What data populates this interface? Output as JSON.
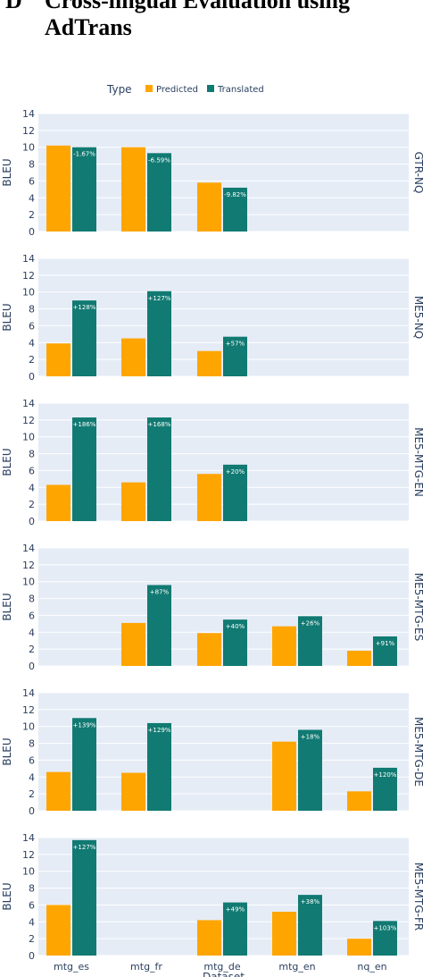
{
  "heading": {
    "letter": "D",
    "line1": "Cross-lingual Evaluation using",
    "line2": "AdTrans"
  },
  "legend": {
    "title": "Type",
    "items": [
      "Predicted",
      "Translated"
    ]
  },
  "colors": {
    "predicted": "#FFA500",
    "translated": "#117A72",
    "panel_bg": "#E5ECF6"
  },
  "chart_data": {
    "type": "bar",
    "categories": [
      "mtg_es",
      "mtg_fr",
      "mtg_de",
      "mtg_en",
      "nq_en"
    ],
    "xlabel": "Dataset",
    "ylabel": "BLEU",
    "ylim": [
      0,
      14
    ],
    "yticks": [
      0,
      2,
      4,
      6,
      8,
      10,
      12,
      14
    ],
    "legend_placement": "top-center",
    "grid": true,
    "facets": [
      {
        "name": "GTR-NQ",
        "series": [
          {
            "name": "Predicted",
            "values": [
              10.2,
              10.0,
              5.8,
              null,
              null
            ]
          },
          {
            "name": "Translated",
            "values": [
              10.0,
              9.3,
              5.2,
              null,
              null
            ]
          }
        ],
        "labels": [
          "-1.67%",
          "-6.59%",
          "-9.82%",
          null,
          null
        ]
      },
      {
        "name": "ME5-NQ",
        "series": [
          {
            "name": "Predicted",
            "values": [
              3.9,
              4.5,
              3.0,
              null,
              null
            ]
          },
          {
            "name": "Translated",
            "values": [
              9.0,
              10.1,
              4.7,
              null,
              null
            ]
          }
        ],
        "labels": [
          "+128%",
          "+127%",
          "+57%",
          null,
          null
        ]
      },
      {
        "name": "ME5-MTG-EN",
        "series": [
          {
            "name": "Predicted",
            "values": [
              4.3,
              4.6,
              5.6,
              null,
              null
            ]
          },
          {
            "name": "Translated",
            "values": [
              12.3,
              12.3,
              6.7,
              null,
              null
            ]
          }
        ],
        "labels": [
          "+186%",
          "+168%",
          "+20%",
          null,
          null
        ]
      },
      {
        "name": "ME5-MTG-ES",
        "series": [
          {
            "name": "Predicted",
            "values": [
              null,
              5.1,
              3.9,
              4.7,
              1.8
            ]
          },
          {
            "name": "Translated",
            "values": [
              null,
              9.6,
              5.5,
              5.9,
              3.5
            ]
          }
        ],
        "labels": [
          null,
          "+87%",
          "+40%",
          "+26%",
          "+91%"
        ]
      },
      {
        "name": "ME5-MTG-DE",
        "series": [
          {
            "name": "Predicted",
            "values": [
              4.6,
              4.5,
              null,
              8.2,
              2.3
            ]
          },
          {
            "name": "Translated",
            "values": [
              11.0,
              10.4,
              null,
              9.6,
              5.1
            ]
          }
        ],
        "labels": [
          "+139%",
          "+129%",
          null,
          "+18%",
          "+120%"
        ]
      },
      {
        "name": "ME5-MTG-FR",
        "series": [
          {
            "name": "Predicted",
            "values": [
              6.0,
              null,
              4.2,
              5.2,
              2.0
            ]
          },
          {
            "name": "Translated",
            "values": [
              13.7,
              null,
              6.3,
              7.2,
              4.1
            ]
          }
        ],
        "labels": [
          "+127%",
          null,
          "+49%",
          "+38%",
          "+103%"
        ]
      }
    ]
  }
}
